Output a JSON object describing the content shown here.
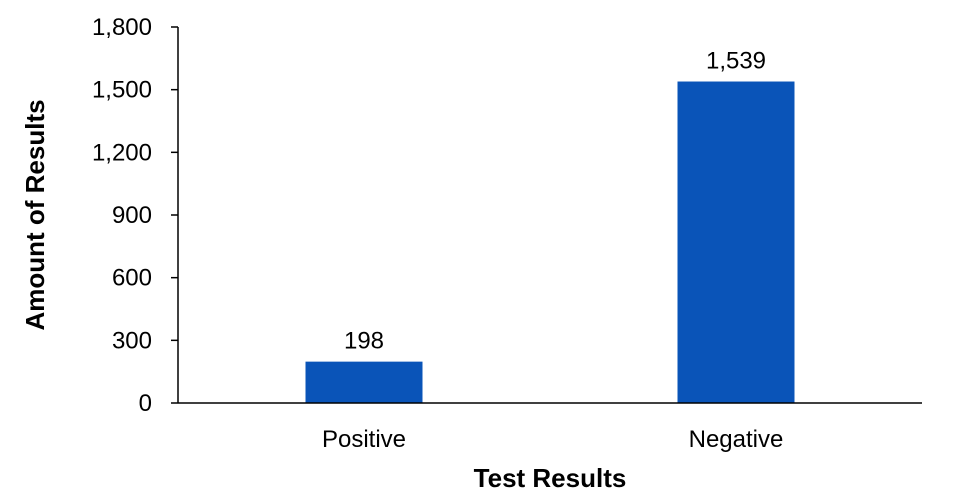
{
  "chart_data": {
    "type": "bar",
    "categories": [
      "Positive",
      "Negative"
    ],
    "values": [
      198,
      1539
    ],
    "value_labels": [
      "198",
      "1,539"
    ],
    "xlabel": "Test Results",
    "ylabel": "Amount of Results",
    "ylim": [
      0,
      1800
    ],
    "yticks": [
      0,
      300,
      600,
      900,
      1200,
      1500,
      1800
    ],
    "ytick_labels": [
      "0",
      "300",
      "600",
      "900",
      "1,200",
      "1,500",
      "1,800"
    ],
    "grid": false,
    "legend": "none",
    "bar_color": "#0a54b8"
  }
}
